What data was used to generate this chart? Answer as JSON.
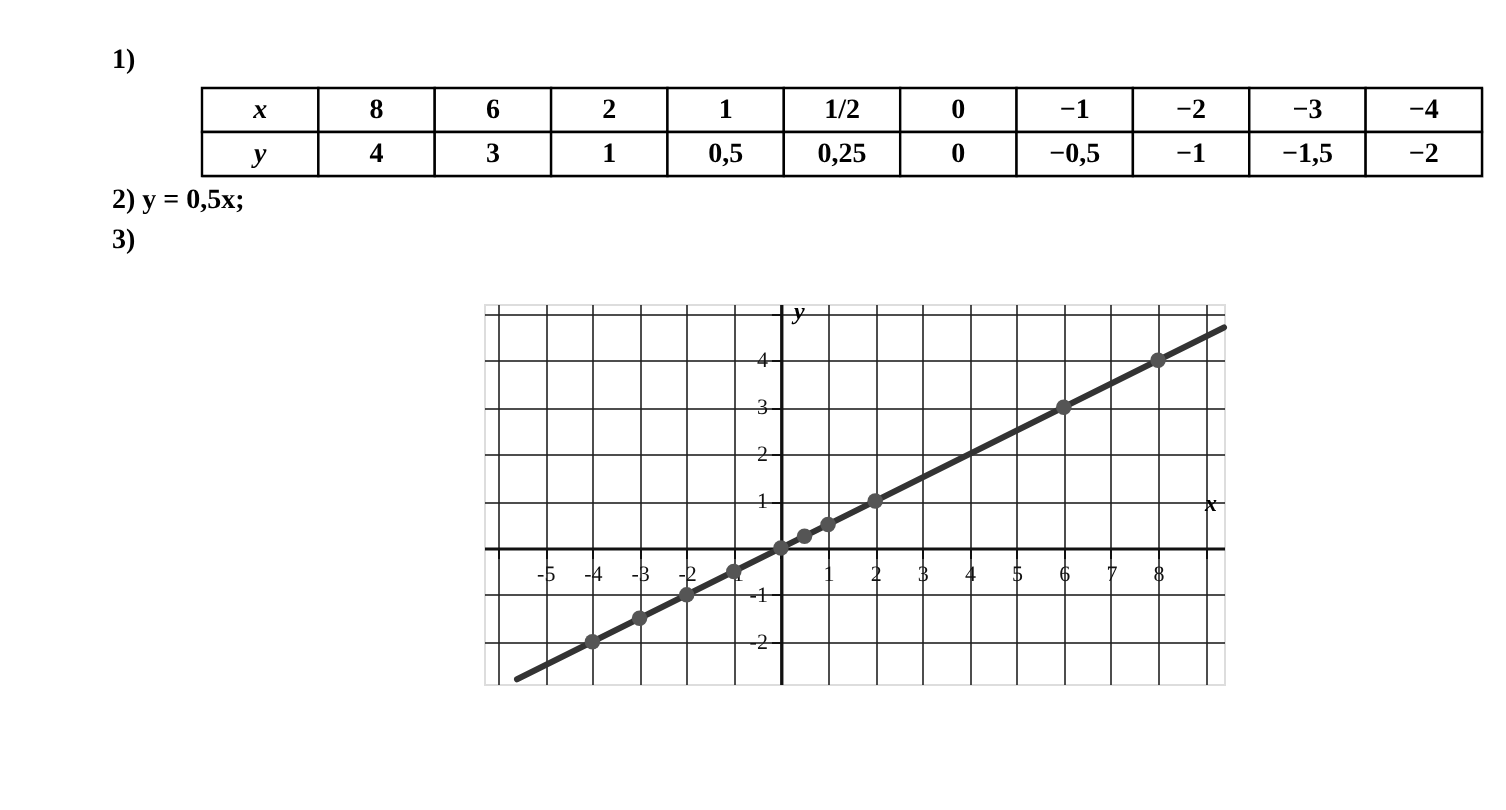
{
  "chart_data": {
    "type": "line",
    "xlabel": "x",
    "ylabel": "y",
    "annotations": [
      "1)",
      "x",
      "8",
      "6",
      "2",
      "1",
      "1/2",
      "0",
      "−1",
      "−2",
      "−3",
      "−4",
      "y",
      "4",
      "3",
      "1",
      "0,5",
      "0,25",
      "0",
      "−0,5",
      "−1",
      "−1,5",
      "−2",
      "2) y = 0,5x;",
      "3)"
    ],
    "xlim": [
      -6.3,
      9.4
    ],
    "ylim": [
      -2.9,
      5.2
    ],
    "xticks": [
      {
        "value": -6,
        "label": null
      },
      -5,
      -4,
      -3,
      -2,
      -1,
      {
        "value": 0,
        "label": null
      },
      1,
      2,
      3,
      4,
      5,
      6,
      7,
      8,
      {
        "value": 9,
        "label": null
      }
    ],
    "yticks": [
      -2,
      -1,
      {
        "value": 0,
        "label": null
      },
      1,
      2,
      3,
      4,
      {
        "value": 5,
        "label": null
      }
    ],
    "grid": true,
    "series": [
      {
        "type": "line",
        "color": "#333333",
        "line_style": "solid",
        "x": [
          -5.6,
          9.4
        ],
        "values": [
          -2.8,
          4.7
        ]
      },
      {
        "type": "scatter",
        "color": "#555555",
        "marker": "circle",
        "x": [
          8,
          6,
          2,
          1,
          0.5,
          0,
          -1,
          -2,
          -3,
          -4
        ],
        "values": [
          4,
          3,
          1,
          0.5,
          0.25,
          0,
          -0.5,
          -1,
          -1.5,
          -2
        ]
      }
    ]
  }
}
